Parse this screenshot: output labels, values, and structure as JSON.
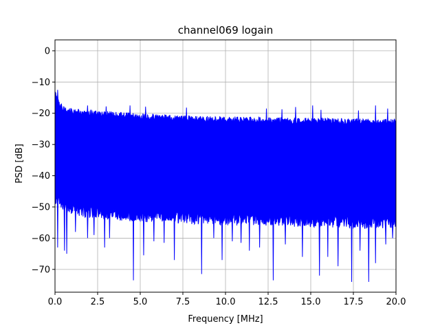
{
  "chart_data": {
    "type": "line",
    "title": "channel069 logain",
    "xlabel": "Frequency [MHz]",
    "ylabel": "PSD [dB]",
    "xlim": [
      0,
      20
    ],
    "ylim": [
      -77.3,
      3.5
    ],
    "xticks": [
      0.0,
      2.5,
      5.0,
      7.5,
      10.0,
      12.5,
      15.0,
      17.5,
      20.0
    ],
    "xtick_labels": [
      "0.0",
      "2.5",
      "5.0",
      "7.5",
      "10.0",
      "12.5",
      "15.0",
      "17.5",
      "20.0"
    ],
    "yticks": [
      0,
      -10,
      -20,
      -30,
      -40,
      -50,
      -60,
      -70
    ],
    "ytick_labels": [
      "0",
      "−10",
      "−20",
      "−30",
      "−40",
      "−50",
      "−60",
      "−70"
    ],
    "grid": true,
    "series": [
      {
        "color": "#0000ff",
        "upper_envelope": {
          "x": [
            0.0,
            0.1,
            0.25,
            0.5,
            1.0,
            2.0,
            3.0,
            4.0,
            5.0,
            6.0,
            7.0,
            8.0,
            9.0,
            10.0,
            12.0,
            14.0,
            16.0,
            18.0,
            20.0
          ],
          "y": [
            -13,
            -14,
            -16,
            -17.5,
            -18.5,
            -19,
            -19.3,
            -19.6,
            -20,
            -20.3,
            -20.5,
            -20.7,
            -20.9,
            -21,
            -21.2,
            -21.4,
            -21.5,
            -21.7,
            -21.8
          ]
        },
        "lower_envelope": {
          "x": [
            0.0,
            0.5,
            1.0,
            2.0,
            4.0,
            6.0,
            8.0,
            10.0,
            12.0,
            14.0,
            16.0,
            18.0,
            20.0
          ],
          "y": [
            -47,
            -49,
            -50,
            -51,
            -52,
            -52.5,
            -53,
            -53.5,
            -53.5,
            -54,
            -54,
            -54.5,
            -54.5
          ]
        },
        "upper_spikes": [
          {
            "x": 0.15,
            "y": -12.5
          },
          {
            "x": 1.9,
            "y": -17.5
          },
          {
            "x": 3.0,
            "y": -17.8
          },
          {
            "x": 4.4,
            "y": -17.5
          },
          {
            "x": 5.3,
            "y": -17.9
          },
          {
            "x": 7.7,
            "y": -18.2
          },
          {
            "x": 12.4,
            "y": -18.5
          },
          {
            "x": 13.3,
            "y": -18.7
          },
          {
            "x": 14.1,
            "y": -18.0
          },
          {
            "x": 15.1,
            "y": -17.5
          },
          {
            "x": 15.6,
            "y": -18.9
          },
          {
            "x": 17.8,
            "y": -19.1
          },
          {
            "x": 18.8,
            "y": -17.5
          },
          {
            "x": 19.5,
            "y": -18.5
          }
        ],
        "lower_spikes": [
          {
            "x": 0.15,
            "y": -63
          },
          {
            "x": 0.55,
            "y": -64
          },
          {
            "x": 0.7,
            "y": -65
          },
          {
            "x": 1.2,
            "y": -58
          },
          {
            "x": 1.9,
            "y": -60
          },
          {
            "x": 2.3,
            "y": -59
          },
          {
            "x": 2.9,
            "y": -63
          },
          {
            "x": 3.2,
            "y": -60
          },
          {
            "x": 4.6,
            "y": -73.5
          },
          {
            "x": 5.2,
            "y": -65.5
          },
          {
            "x": 5.8,
            "y": -61
          },
          {
            "x": 6.4,
            "y": -61.5
          },
          {
            "x": 7.0,
            "y": -67
          },
          {
            "x": 8.6,
            "y": -71.5
          },
          {
            "x": 9.3,
            "y": -60
          },
          {
            "x": 9.8,
            "y": -67
          },
          {
            "x": 10.4,
            "y": -61
          },
          {
            "x": 10.9,
            "y": -61.5
          },
          {
            "x": 11.4,
            "y": -64
          },
          {
            "x": 12.0,
            "y": -63
          },
          {
            "x": 12.8,
            "y": -73.5
          },
          {
            "x": 13.5,
            "y": -62
          },
          {
            "x": 14.5,
            "y": -66
          },
          {
            "x": 15.5,
            "y": -72
          },
          {
            "x": 16.0,
            "y": -66
          },
          {
            "x": 16.6,
            "y": -69
          },
          {
            "x": 17.4,
            "y": -74
          },
          {
            "x": 17.9,
            "y": -64
          },
          {
            "x": 18.4,
            "y": -74
          },
          {
            "x": 18.8,
            "y": -68
          },
          {
            "x": 19.4,
            "y": -62
          },
          {
            "x": 19.8,
            "y": -60
          }
        ]
      }
    ]
  }
}
